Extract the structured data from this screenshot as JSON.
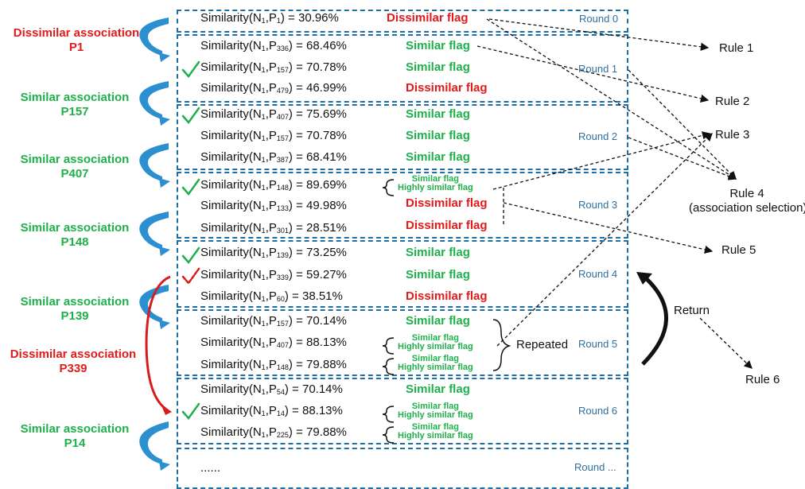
{
  "rounds": {
    "r0": "Round 0",
    "r1": "Round 1",
    "r2": "Round 2",
    "r3": "Round 3",
    "r4": "Round 4",
    "r5": "Round 5",
    "r6": "Round 6",
    "r7": "Round ..."
  },
  "sim_prefix": "Similarity(N",
  "sim_mid": ",P",
  "n_sub": "1",
  "rows": [
    {
      "p": "1",
      "val": "30.96%"
    },
    {
      "p": "336",
      "val": "68.46%"
    },
    {
      "p": "157",
      "val": "70.78%"
    },
    {
      "p": "479",
      "val": "46.99%"
    },
    {
      "p": "407",
      "val": "75.69%"
    },
    {
      "p": "157",
      "val": "70.78%"
    },
    {
      "p": "387",
      "val": "68.41%"
    },
    {
      "p": "148",
      "val": "89.69%"
    },
    {
      "p": "133",
      "val": "49.98%"
    },
    {
      "p": "301",
      "val": "28.51%"
    },
    {
      "p": "139",
      "val": "73.25%"
    },
    {
      "p": "339",
      "val": "59.27%"
    },
    {
      "p": "60",
      "val": "38.51%"
    },
    {
      "p": "157",
      "val": "70.14%"
    },
    {
      "p": "407",
      "val": "88.13%"
    },
    {
      "p": "148",
      "val": "79.88%"
    },
    {
      "p": "54",
      "val": "70.14%"
    },
    {
      "p": "14",
      "val": "88.13%"
    },
    {
      "p": "225",
      "val": "79.88%"
    }
  ],
  "flags": {
    "similar": "Similar flag",
    "dissimilar": "Dissimilar flag",
    "highly_similar": "Highly similar flag"
  },
  "ellipsis": "......",
  "assoc": {
    "dissimilar_label": "Dissimilar association",
    "similar_label": "Similar association",
    "a1_p": "P1",
    "a2_p": "P157",
    "a3_p": "P407",
    "a4_p": "P148",
    "a5_p": "P139",
    "a6_p": "P339",
    "a7_p": "P14"
  },
  "rules": {
    "r1": "Rule 1",
    "r2": "Rule 2",
    "r3": "Rule 3",
    "r4": "Rule 4",
    "r4_sub": "(association selection)",
    "r5": "Rule 5",
    "r6": "Rule 6"
  },
  "return_label": "Return",
  "repeated_label": "Repeated",
  "colors": {
    "box": "#1f6fa5",
    "similar": "#1fb04c",
    "dissimilar": "#e01b1b",
    "arrow_blue": "#2b8fd0",
    "arrow_red": "#d81c1c"
  }
}
